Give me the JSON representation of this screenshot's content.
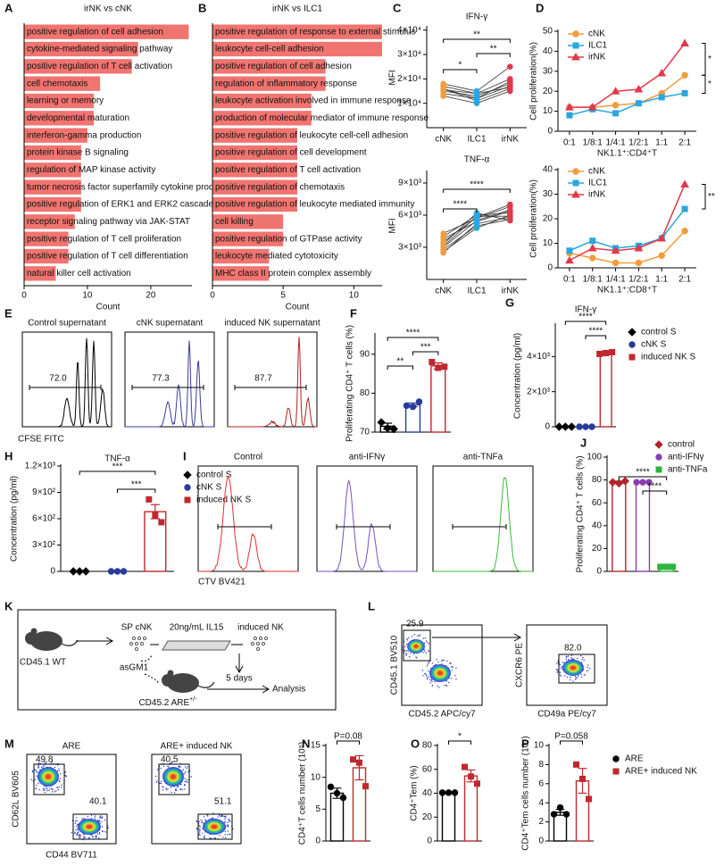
{
  "panel_labels": [
    "A",
    "B",
    "C",
    "D",
    "E",
    "F",
    "G",
    "H",
    "I",
    "J",
    "K",
    "L",
    "M",
    "N",
    "O",
    "P"
  ],
  "chart_data": [
    {
      "type": "hbar",
      "title": "irNK vs cNK",
      "xlabel": "Count",
      "color": "#f07470",
      "xlim": [
        0,
        26.5
      ],
      "xticks": [
        0,
        10,
        20
      ],
      "categories": [
        "positive regulation of cell adhesion",
        "cytokine-mediated signaling pathway",
        "positive regulation of T cell activation",
        "cell chemotaxis",
        "learning or memory",
        "developmental maturation",
        "interferon-gamma production",
        "protein kinase B signaling",
        "regulation of MAP kinase activity",
        "tumor necrosis factor superfamily cytokine production",
        "positive regulation of ERK1 and ERK2 cascade",
        "receptor signaling pathway via JAK-STAT",
        "positive regulation of T cell proliferation",
        "positive regulation of T cell differentiation",
        "natural killer cell activation"
      ],
      "values": [
        26,
        18,
        17,
        12,
        11,
        11,
        10,
        9,
        9,
        9,
        9,
        8,
        7,
        7,
        5
      ]
    },
    {
      "type": "hbar",
      "title": "irNK vs ILC1",
      "xlabel": "Count",
      "color": "#f07470",
      "xlim": [
        0,
        12
      ],
      "xticks": [
        0,
        5,
        10
      ],
      "categories": [
        "positive regulation of response to external stimulus",
        "leukocyte cell-cell adhesion",
        "positive regulation of cell adhesion",
        "regulation of inflammatory response",
        "leukocyte activation involved in immune response",
        "production of molecular mediator of immune response",
        "positive regulation of leukocyte cell-cell adhesion",
        "positive regulation of cell development",
        "positive regulation of T cell activation",
        "positive regulation of chemotaxis",
        "positive regulation of leukocyte mediated immunity",
        "cell killing",
        "positive regulation of GTPase activity",
        "leukocyte mediated cytotoxicity",
        "MHC class II protein complex assembly"
      ],
      "values": [
        12,
        12,
        8,
        8,
        7,
        7,
        6,
        6,
        6,
        6,
        6,
        5,
        5,
        4,
        4
      ]
    },
    {
      "type": "paired",
      "title": "IFN-γ",
      "ylabel": "MFI",
      "categories": [
        "cNK",
        "ILC1",
        "irNK"
      ],
      "colors": [
        "#f39c3c",
        "#2aa7df",
        "#e0394a"
      ],
      "ylim": [
        0,
        41000
      ],
      "yticks": [
        {
          "value": 10000,
          "label": "1×10⁴"
        },
        {
          "value": 20000,
          "label": "2×10⁴"
        },
        {
          "value": 30000,
          "label": "3×10⁴"
        },
        {
          "value": 40000,
          "label": "4×10⁴"
        }
      ],
      "series": [
        {
          "values": [
            16000,
            11000,
            16000
          ]
        },
        {
          "values": [
            15000,
            13000,
            18000
          ]
        },
        {
          "values": [
            17000,
            14000,
            20000
          ]
        },
        {
          "values": [
            14000,
            12000,
            17000
          ]
        },
        {
          "values": [
            18000,
            15000,
            25000
          ]
        },
        {
          "values": [
            13000,
            10000,
            15000
          ]
        },
        {
          "values": [
            16000,
            12000,
            19000
          ]
        },
        {
          "values": [
            15500,
            14000,
            16500
          ]
        }
      ],
      "annotations": [
        "**",
        "**",
        "*"
      ]
    },
    {
      "type": "paired",
      "title": "TNF-α",
      "ylabel": "MFI",
      "categories": [
        "cNK",
        "ILC1",
        "irNK"
      ],
      "colors": [
        "#f39c3c",
        "#2aa7df",
        "#e0394a"
      ],
      "ylim": [
        0,
        10000
      ],
      "yticks": [
        {
          "value": 3000,
          "label": "3×10³"
        },
        {
          "value": 6000,
          "label": "6×10³"
        },
        {
          "value": 9000,
          "label": "9×10³"
        }
      ],
      "series": [
        {
          "values": [
            2500,
            5200,
            5800
          ]
        },
        {
          "values": [
            3000,
            5500,
            6500
          ]
        },
        {
          "values": [
            3500,
            5800,
            7000
          ]
        },
        {
          "values": [
            4000,
            6000,
            6200
          ]
        },
        {
          "values": [
            2800,
            5000,
            5600
          ]
        },
        {
          "values": [
            4300,
            5700,
            6800
          ]
        },
        {
          "values": [
            3300,
            6200,
            5500
          ]
        },
        {
          "values": [
            2600,
            4800,
            6000
          ]
        },
        {
          "values": [
            3800,
            5400,
            6400
          ]
        },
        {
          "values": [
            3100,
            5900,
            5900
          ]
        }
      ],
      "annotations": [
        "****",
        "****"
      ]
    },
    {
      "type": "line",
      "ylabel": "Cell proliferation(%)",
      "xlabel": "NK1.1⁺:CD4⁺T",
      "categories": [
        "0:1",
        "1/8:1",
        "1/4:1",
        "1/2:1",
        "1:1",
        "2:1"
      ],
      "ylim": [
        0,
        50
      ],
      "yticks": [
        0,
        10,
        20,
        30,
        40,
        50
      ],
      "series": [
        {
          "name": "cNK",
          "color": "#f39c3c",
          "marker": "circle",
          "values": [
            12,
            12,
            13,
            14,
            19,
            28
          ]
        },
        {
          "name": "ILC1",
          "color": "#2aa7df",
          "marker": "square",
          "values": [
            8,
            11,
            9,
            14,
            17,
            19
          ]
        },
        {
          "name": "irNK",
          "color": "#e0394a",
          "marker": "triangle",
          "values": [
            12,
            12,
            20,
            21,
            29,
            44
          ]
        }
      ],
      "annotations": [
        "*",
        "*"
      ]
    },
    {
      "type": "line",
      "ylabel": "Cell proliferation(%)",
      "xlabel": "NK1.1⁺:CD8⁺T",
      "categories": [
        "0:1",
        "1/8:1",
        "1/4:1",
        "1/2:1",
        "1:1",
        "2:1"
      ],
      "ylim": [
        0,
        40
      ],
      "yticks": [
        0,
        10,
        20,
        30,
        40
      ],
      "series": [
        {
          "name": "cNK",
          "color": "#f39c3c",
          "marker": "circle",
          "values": [
            6,
            4,
            2,
            2,
            5,
            15
          ]
        },
        {
          "name": "ILC1",
          "color": "#2aa7df",
          "marker": "square",
          "values": [
            7,
            11,
            8,
            9,
            12,
            24
          ]
        },
        {
          "name": "irNK",
          "color": "#e0394a",
          "marker": "triangle",
          "values": [
            3,
            8,
            7,
            8,
            12,
            34
          ]
        }
      ],
      "annotations": [
        "**"
      ]
    },
    {
      "type": "bardot",
      "ylabel": "Proliferating CD4⁺ T cells (%)",
      "categories": [
        null,
        null,
        null
      ],
      "colors": [
        "#000000",
        "#2a3a9a",
        "#c0282d"
      ],
      "markers": [
        "diamond",
        "circle",
        "square"
      ],
      "ylim": [
        70,
        95
      ],
      "yticks": [
        70,
        80,
        90
      ],
      "values": [
        71.5,
        77,
        87
      ],
      "errors": [
        0.8,
        0.5,
        0.8
      ],
      "points": [
        [
          72.5,
          71,
          70.8
        ],
        [
          76.8,
          76.5,
          77.8
        ],
        [
          88,
          86.5,
          86.8
        ]
      ],
      "annotations": [
        "****",
        "***",
        "**"
      ]
    },
    {
      "type": "bardot",
      "title": "IFN-γ",
      "ylabel": "Concentration (pg/ml)",
      "categories": [
        null,
        null,
        null
      ],
      "colors": [
        "#000000",
        "#2a3a9a",
        "#c0282d"
      ],
      "markers": [
        "diamond",
        "circle",
        "square"
      ],
      "legend": [
        "control S",
        "cNK S",
        "induced NK S"
      ],
      "ylim": [
        0,
        5800
      ],
      "yticks": [
        0,
        {
          "value": 2000,
          "label": "2×10³"
        },
        {
          "value": 4000,
          "label": "4×10³"
        }
      ],
      "values": [
        0,
        0,
        4200
      ],
      "errors": [
        0,
        0,
        100
      ],
      "points": [
        [
          0,
          0,
          0
        ],
        [
          0,
          0,
          0
        ],
        [
          4150,
          4200,
          4250
        ]
      ],
      "annotations": [
        "****",
        "****"
      ]
    },
    {
      "type": "bardot",
      "title": "TNF-α",
      "ylabel": "Concentration (pg/ml)",
      "categories": [
        null,
        null,
        null
      ],
      "colors": [
        "#000000",
        "#2a3a9a",
        "#c0282d"
      ],
      "markers": [
        "diamond",
        "circle",
        "square"
      ],
      "legend": [
        "control S",
        "cNK S",
        "induced NK S"
      ],
      "ylim": [
        0,
        1200
      ],
      "yticks": [
        0,
        {
          "value": 300,
          "label": "3×10²"
        },
        {
          "value": 600,
          "label": "6×10²"
        },
        {
          "value": 900,
          "label": "9×10²"
        },
        {
          "value": 1200,
          "label": "1.2×10³"
        }
      ],
      "values": [
        0,
        0,
        680
      ],
      "errors": [
        0,
        0,
        80
      ],
      "points": [
        [
          0,
          0,
          0
        ],
        [
          0,
          0,
          0
        ],
        [
          820,
          640,
          560
        ]
      ],
      "annotations": [
        "***",
        "***"
      ]
    },
    {
      "type": "bardot",
      "ylabel": "Proliferating CD4⁺ T cells (%)",
      "categories": [
        null,
        null,
        null
      ],
      "colors": [
        "#b0262b",
        "#8a3fb0",
        "#2db33d"
      ],
      "markers": [
        "diamond",
        "circle",
        "square"
      ],
      "legend": [
        "control",
        "anti-IFNγ",
        "anti-TNFa"
      ],
      "ylim": [
        0,
        100
      ],
      "yticks": [
        0,
        20,
        40,
        60,
        80,
        100
      ],
      "values": [
        78,
        78,
        4
      ],
      "errors": [
        1,
        0.5,
        0.5
      ],
      "points": [
        [
          78,
          77,
          79
        ],
        [
          78,
          78,
          78
        ],
        [
          4,
          4,
          4
        ]
      ],
      "annotations": [
        "****",
        "****"
      ]
    },
    {
      "type": "bardot",
      "ylabel": "CD4⁺T cells number (10⁵)",
      "categories": [
        null,
        null
      ],
      "colors": [
        "#000000",
        "#c0282d"
      ],
      "markers": [
        "circle",
        "square"
      ],
      "ylim": [
        0,
        15
      ],
      "yticks": [
        0,
        5,
        10,
        15
      ],
      "values": [
        7.5,
        11.5
      ],
      "errors": [
        0.8,
        1.9
      ],
      "points": [
        [
          8.5,
          7.5,
          6.8
        ],
        [
          12.8,
          12.3,
          8.6
        ]
      ],
      "annotations": [
        "P=0.08"
      ]
    },
    {
      "type": "bardot",
      "ylabel": "CD4⁺Tem (%)",
      "categories": [
        null,
        null
      ],
      "colors": [
        "#000000",
        "#c0282d"
      ],
      "markers": [
        "circle",
        "square"
      ],
      "ylim": [
        0,
        80
      ],
      "yticks": [
        0,
        20,
        40,
        60,
        80
      ],
      "values": [
        40.5,
        54.5
      ],
      "errors": [
        0.5,
        5
      ],
      "points": [
        [
          40.5,
          40.5,
          40.5
        ],
        [
          62,
          54,
          48
        ]
      ],
      "annotations": [
        "*"
      ]
    },
    {
      "type": "bardot",
      "ylabel": "CD4⁺Tem cells number (10⁵)",
      "categories": [
        null,
        null
      ],
      "colors": [
        "#000000",
        "#c0282d"
      ],
      "markers": [
        "circle",
        "square"
      ],
      "legend": [
        "ARE",
        "ARE+ induced NK"
      ],
      "ylim": [
        0,
        10
      ],
      "yticks": [
        0,
        2,
        4,
        6,
        8,
        10
      ],
      "values": [
        3,
        6.3
      ],
      "errors": [
        0.3,
        1.3
      ],
      "points": [
        [
          2.8,
          3.5,
          2.8
        ],
        [
          8,
          6.5,
          4.4
        ]
      ],
      "annotations": [
        "P=0.058"
      ]
    }
  ],
  "flow_E": {
    "titles": [
      "Control supernatant",
      "cNK supernatant",
      "induced NK supernatant"
    ],
    "gates": [
      "72.0",
      "77.3",
      "87.7"
    ],
    "xlabel": "CFSE FITC"
  },
  "flow_I": {
    "titles": [
      "Control",
      "anti-IFNγ",
      "anti-TNFa"
    ],
    "xlabel": "CTV BV421"
  },
  "schematic_K": {
    "donor": "CD45.1 WT",
    "cells": "SP cNK",
    "culture": "20ng/mL IL15",
    "product": "induced NK",
    "depletion": "asGM1",
    "recipient": "CD45.2 ARE",
    "recipient_sup": "+/-",
    "time": "5 days",
    "readout": "Analysis"
  },
  "flow_L": {
    "ylabels": [
      "CD45.1 BV510",
      "CXCR6 PE"
    ],
    "xlabels": [
      "CD45.2 APC/cy7",
      "CD49a PE/cy7"
    ],
    "gates": [
      "25.9",
      "82.0"
    ]
  },
  "flow_M": {
    "titles": [
      "ARE",
      "ARE+ induced NK"
    ],
    "gates": [
      [
        "49.8",
        "40.1"
      ],
      [
        "40.5",
        "51.1"
      ]
    ],
    "ylabel": "CD62L BV605",
    "xlabel": "CD44 BV711"
  }
}
